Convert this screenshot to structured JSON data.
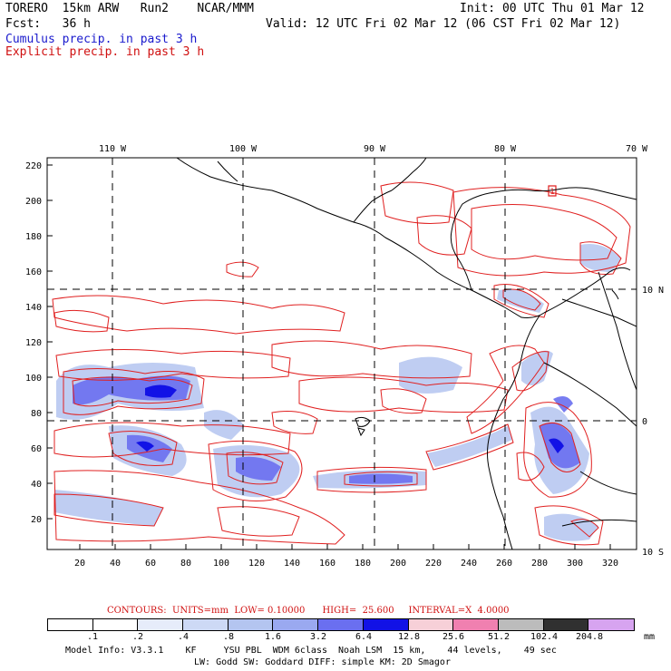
{
  "header": {
    "line1_left": "TORERO  15km ARW   Run2    NCAR/MMM",
    "line1_right": "Init: 00 UTC Thu 01 Mar 12",
    "line2_left": "Fcst:   36 h",
    "line2_right": "Valid: 12 UTC Fri 02 Mar 12 (06 CST Fri 02 Mar 12)",
    "line3": "Cumulus precip. in past 3 h",
    "line4": "Explicit precip. in past 3 h"
  },
  "map": {
    "lon_labels": [
      "110 W",
      "100 W",
      "90 W",
      "80 W",
      "70 W"
    ],
    "lat_labels_right": [
      "10 N",
      "0",
      "10 S"
    ],
    "y_ticks": [
      "220",
      "200",
      "180",
      "160",
      "140",
      "120",
      "100",
      "80",
      "60",
      "40",
      "20"
    ],
    "x_ticks": [
      "20",
      "40",
      "60",
      "80",
      "100",
      "120",
      "140",
      "160",
      "180",
      "200",
      "220",
      "240",
      "260",
      "280",
      "300",
      "320"
    ],
    "high_marker": "1",
    "colors": {
      "coast": "#000000",
      "explicit_contour": "#e02020",
      "grid": "#000000"
    }
  },
  "contour_caption": "CONTOURS:  UNITS=mm  LOW= 0.10000      HIGH=  25.600     INTERVAL=X  4.0000",
  "legend": {
    "labels": [
      ".1",
      ".2",
      ".4",
      ".8",
      "1.6",
      "3.2",
      "6.4",
      "12.8",
      "25.6",
      "51.2",
      "102.4",
      "204.8"
    ],
    "unit": "mm",
    "colors": [
      "#ffffff",
      "#ffffff",
      "#e6ecfa",
      "#cdd9f5",
      "#b4c5f0",
      "#9aa9f0",
      "#6a6ff0",
      "#1212e6",
      "#f7d0d8",
      "#f080b0",
      "#bcbcbc",
      "#303030",
      "#d7a4f0"
    ]
  },
  "footer": {
    "line1": "Model Info: V3.3.1    KF     YSU PBL  WDM 6class  Noah LSM  15 km,    44 levels,    49 sec",
    "line2": "LW: Godd SW: Goddard DIFF: simple KM: 2D Smagor"
  }
}
